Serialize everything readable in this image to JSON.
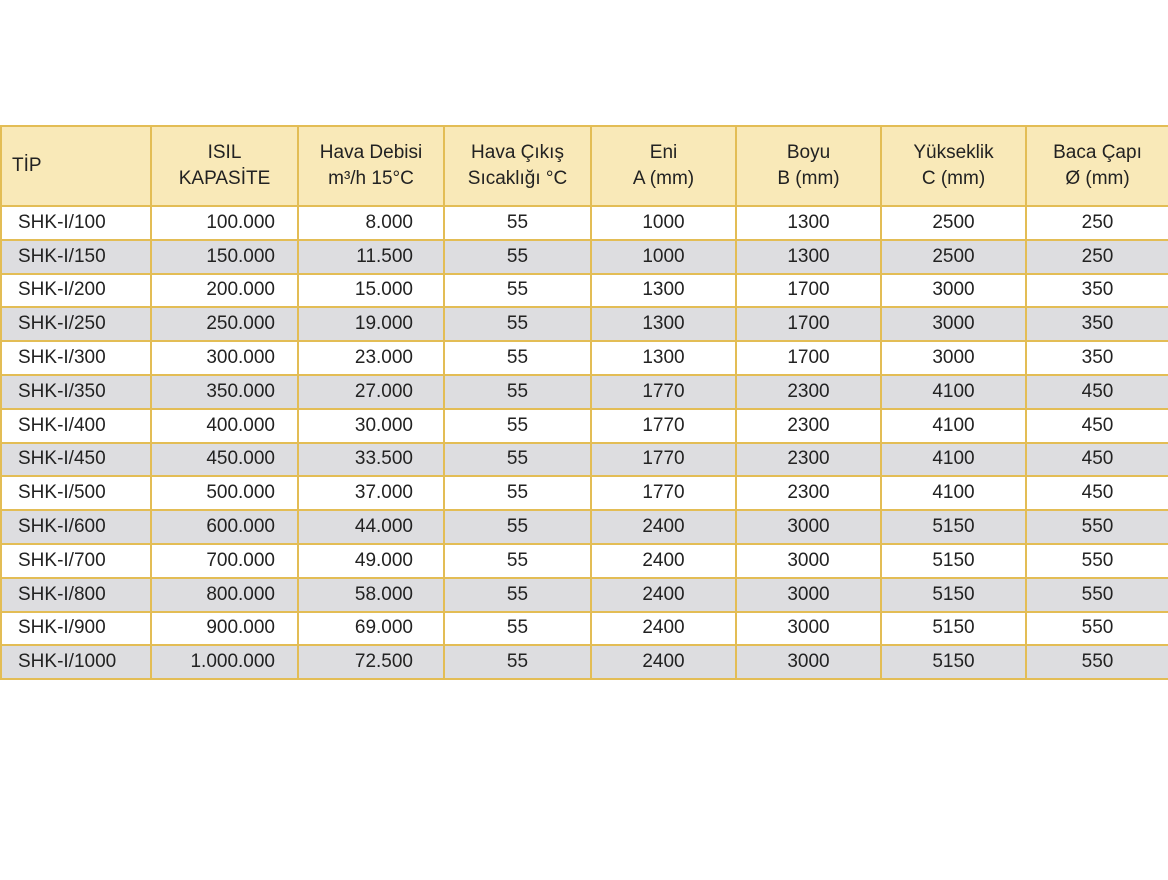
{
  "table": {
    "header": [
      [
        "TİP"
      ],
      [
        "ISIL",
        "KAPASİTE"
      ],
      [
        "Hava Debisi",
        "m³/h 15°C"
      ],
      [
        "Hava Çıkış",
        "Sıcaklığı °C"
      ],
      [
        "Eni",
        "A (mm)"
      ],
      [
        "Boyu",
        "B (mm)"
      ],
      [
        "Yükseklik",
        "C (mm)"
      ],
      [
        "Baca Çapı",
        "Ø (mm)"
      ]
    ],
    "rows": [
      [
        "SHK-I/100",
        "100.000",
        "8.000",
        "55",
        "1000",
        "1300",
        "2500",
        "250"
      ],
      [
        "SHK-I/150",
        "150.000",
        "11.500",
        "55",
        "1000",
        "1300",
        "2500",
        "250"
      ],
      [
        "SHK-I/200",
        "200.000",
        "15.000",
        "55",
        "1300",
        "1700",
        "3000",
        "350"
      ],
      [
        "SHK-I/250",
        "250.000",
        "19.000",
        "55",
        "1300",
        "1700",
        "3000",
        "350"
      ],
      [
        "SHK-I/300",
        "300.000",
        "23.000",
        "55",
        "1300",
        "1700",
        "3000",
        "350"
      ],
      [
        "SHK-I/350",
        "350.000",
        "27.000",
        "55",
        "1770",
        "2300",
        "4100",
        "450"
      ],
      [
        "SHK-I/400",
        "400.000",
        "30.000",
        "55",
        "1770",
        "2300",
        "4100",
        "450"
      ],
      [
        "SHK-I/450",
        "450.000",
        "33.500",
        "55",
        "1770",
        "2300",
        "4100",
        "450"
      ],
      [
        "SHK-I/500",
        "500.000",
        "37.000",
        "55",
        "1770",
        "2300",
        "4100",
        "450"
      ],
      [
        "SHK-I/600",
        "600.000",
        "44.000",
        "55",
        "2400",
        "3000",
        "5150",
        "550"
      ],
      [
        "SHK-I/700",
        "700.000",
        "49.000",
        "55",
        "2400",
        "3000",
        "5150",
        "550"
      ],
      [
        "SHK-I/800",
        "800.000",
        "58.000",
        "55",
        "2400",
        "3000",
        "5150",
        "550"
      ],
      [
        "SHK-I/900",
        "900.000",
        "69.000",
        "55",
        "2400",
        "3000",
        "5150",
        "550"
      ],
      [
        "SHK-I/1000",
        "1.000.000",
        "72.500",
        "55",
        "2400",
        "3000",
        "5150",
        "550"
      ]
    ]
  }
}
